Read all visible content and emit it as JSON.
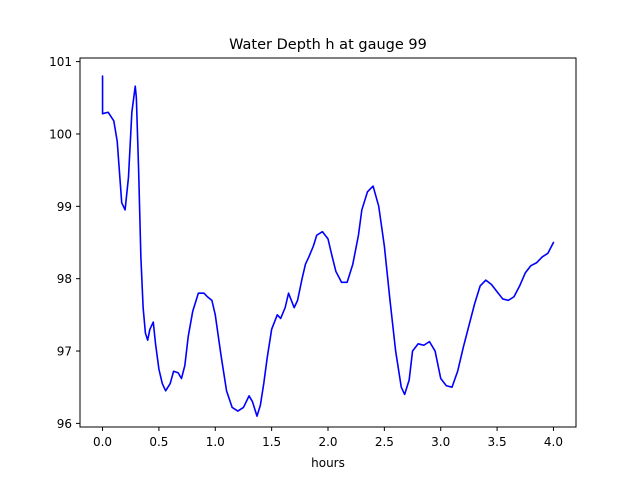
{
  "chart_data": {
    "type": "line",
    "title": "Water Depth h at gauge 99",
    "xlabel": "hours",
    "ylabel": "",
    "xlim": [
      -0.2,
      4.2
    ],
    "ylim": [
      95.95,
      101.05
    ],
    "xticks": [
      {
        "value": 0.0,
        "label": "0.0"
      },
      {
        "value": 0.5,
        "label": "0.5"
      },
      {
        "value": 1.0,
        "label": "1.0"
      },
      {
        "value": 1.5,
        "label": "1.5"
      },
      {
        "value": 2.0,
        "label": "2.0"
      },
      {
        "value": 2.5,
        "label": "2.5"
      },
      {
        "value": 3.0,
        "label": "3.0"
      },
      {
        "value": 3.5,
        "label": "3.5"
      },
      {
        "value": 4.0,
        "label": "4.0"
      }
    ],
    "yticks": [
      {
        "value": 96,
        "label": "96"
      },
      {
        "value": 97,
        "label": "97"
      },
      {
        "value": 98,
        "label": "98"
      },
      {
        "value": 99,
        "label": "99"
      },
      {
        "value": 100,
        "label": "100"
      },
      {
        "value": 101,
        "label": "101"
      }
    ],
    "grid": false,
    "series": [
      {
        "color": "#0000ff",
        "x": [
          0.0,
          0.0,
          0.0,
          0.05,
          0.1,
          0.13,
          0.17,
          0.2,
          0.23,
          0.26,
          0.29,
          0.3,
          0.32,
          0.34,
          0.36,
          0.38,
          0.4,
          0.42,
          0.45,
          0.47,
          0.5,
          0.53,
          0.56,
          0.6,
          0.63,
          0.67,
          0.7,
          0.73,
          0.76,
          0.8,
          0.85,
          0.9,
          0.93,
          0.97,
          1.0,
          1.05,
          1.1,
          1.15,
          1.2,
          1.25,
          1.3,
          1.33,
          1.37,
          1.4,
          1.43,
          1.46,
          1.5,
          1.55,
          1.58,
          1.62,
          1.65,
          1.7,
          1.73,
          1.77,
          1.8,
          1.83,
          1.87,
          1.9,
          1.95,
          2.0,
          2.03,
          2.07,
          2.12,
          2.17,
          2.22,
          2.27,
          2.3,
          2.35,
          2.4,
          2.45,
          2.5,
          2.55,
          2.6,
          2.65,
          2.68,
          2.72,
          2.75,
          2.8,
          2.85,
          2.9,
          2.95,
          3.0,
          3.05,
          3.1,
          3.15,
          3.2,
          3.25,
          3.3,
          3.35,
          3.4,
          3.45,
          3.5,
          3.55,
          3.6,
          3.65,
          3.7,
          3.75,
          3.8,
          3.85,
          3.9,
          3.95,
          4.0
        ],
        "values": [
          100.8,
          100.28,
          100.28,
          100.3,
          100.18,
          99.9,
          99.05,
          98.95,
          99.4,
          100.3,
          100.66,
          100.5,
          99.5,
          98.3,
          97.6,
          97.25,
          97.15,
          97.3,
          97.4,
          97.1,
          96.75,
          96.55,
          96.45,
          96.55,
          96.72,
          96.7,
          96.62,
          96.8,
          97.2,
          97.55,
          97.8,
          97.8,
          97.75,
          97.7,
          97.5,
          96.95,
          96.45,
          96.22,
          96.17,
          96.22,
          96.38,
          96.3,
          96.1,
          96.25,
          96.55,
          96.9,
          97.3,
          97.5,
          97.45,
          97.6,
          97.8,
          97.6,
          97.7,
          98.0,
          98.2,
          98.3,
          98.45,
          98.6,
          98.65,
          98.55,
          98.35,
          98.1,
          97.95,
          97.95,
          98.2,
          98.6,
          98.95,
          99.2,
          99.28,
          99.0,
          98.45,
          97.7,
          97.0,
          96.5,
          96.4,
          96.6,
          97.0,
          97.1,
          97.08,
          97.13,
          97.0,
          96.62,
          96.52,
          96.5,
          96.72,
          97.05,
          97.35,
          97.65,
          97.9,
          97.98,
          97.92,
          97.82,
          97.72,
          97.7,
          97.75,
          97.9,
          98.08,
          98.18,
          98.22,
          98.3,
          98.35,
          98.5
        ]
      }
    ]
  }
}
